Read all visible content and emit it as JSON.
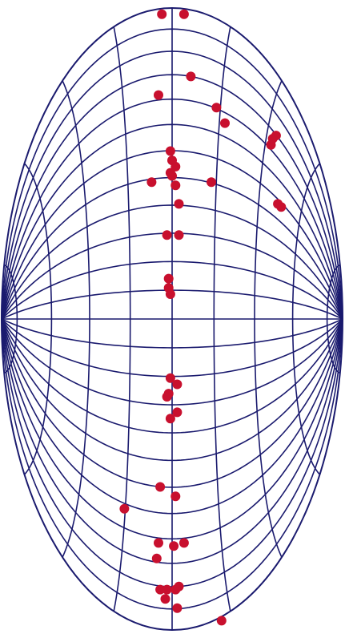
{
  "chart_data": {
    "type": "scatter",
    "grid": true,
    "series": [
      {
        "values": [
          [
            -0.06,
            0.98
          ],
          [
            0.07,
            0.98
          ],
          [
            0.11,
            0.78
          ],
          [
            -0.08,
            0.72
          ],
          [
            0.26,
            0.68
          ],
          [
            0.31,
            0.63
          ],
          [
            0.59,
            0.58
          ],
          [
            0.61,
            0.59
          ],
          [
            0.58,
            0.56
          ],
          [
            -0.01,
            0.54
          ],
          [
            0.0,
            0.51
          ],
          [
            0.02,
            0.49
          ],
          [
            -0.01,
            0.47
          ],
          [
            0.0,
            0.46
          ],
          [
            -0.12,
            0.44
          ],
          [
            0.02,
            0.43
          ],
          [
            0.23,
            0.44
          ],
          [
            0.04,
            0.37
          ],
          [
            0.62,
            0.37
          ],
          [
            0.64,
            0.36
          ],
          [
            -0.03,
            0.27
          ],
          [
            0.04,
            0.27
          ],
          [
            -0.02,
            0.13
          ],
          [
            -0.02,
            0.1
          ],
          [
            -0.01,
            0.08
          ],
          [
            -0.01,
            -0.19
          ],
          [
            0.03,
            -0.21
          ],
          [
            -0.02,
            -0.24
          ],
          [
            -0.03,
            -0.25
          ],
          [
            0.03,
            -0.3
          ],
          [
            -0.01,
            -0.32
          ],
          [
            -0.07,
            -0.54
          ],
          [
            0.02,
            -0.57
          ],
          [
            -0.28,
            -0.61
          ],
          [
            -0.08,
            -0.72
          ],
          [
            0.01,
            -0.73
          ],
          [
            0.07,
            -0.72
          ],
          [
            -0.09,
            -0.77
          ],
          [
            -0.07,
            -0.87
          ],
          [
            -0.03,
            -0.87
          ],
          [
            0.02,
            -0.87
          ],
          [
            0.04,
            -0.86
          ],
          [
            -0.04,
            -0.9
          ],
          [
            0.03,
            -0.93
          ],
          [
            0.29,
            -0.97
          ]
        ]
      }
    ]
  },
  "style": {
    "grid_color": "#1a1a6e",
    "point_color": "#c8102e",
    "background": "#ffffff"
  }
}
